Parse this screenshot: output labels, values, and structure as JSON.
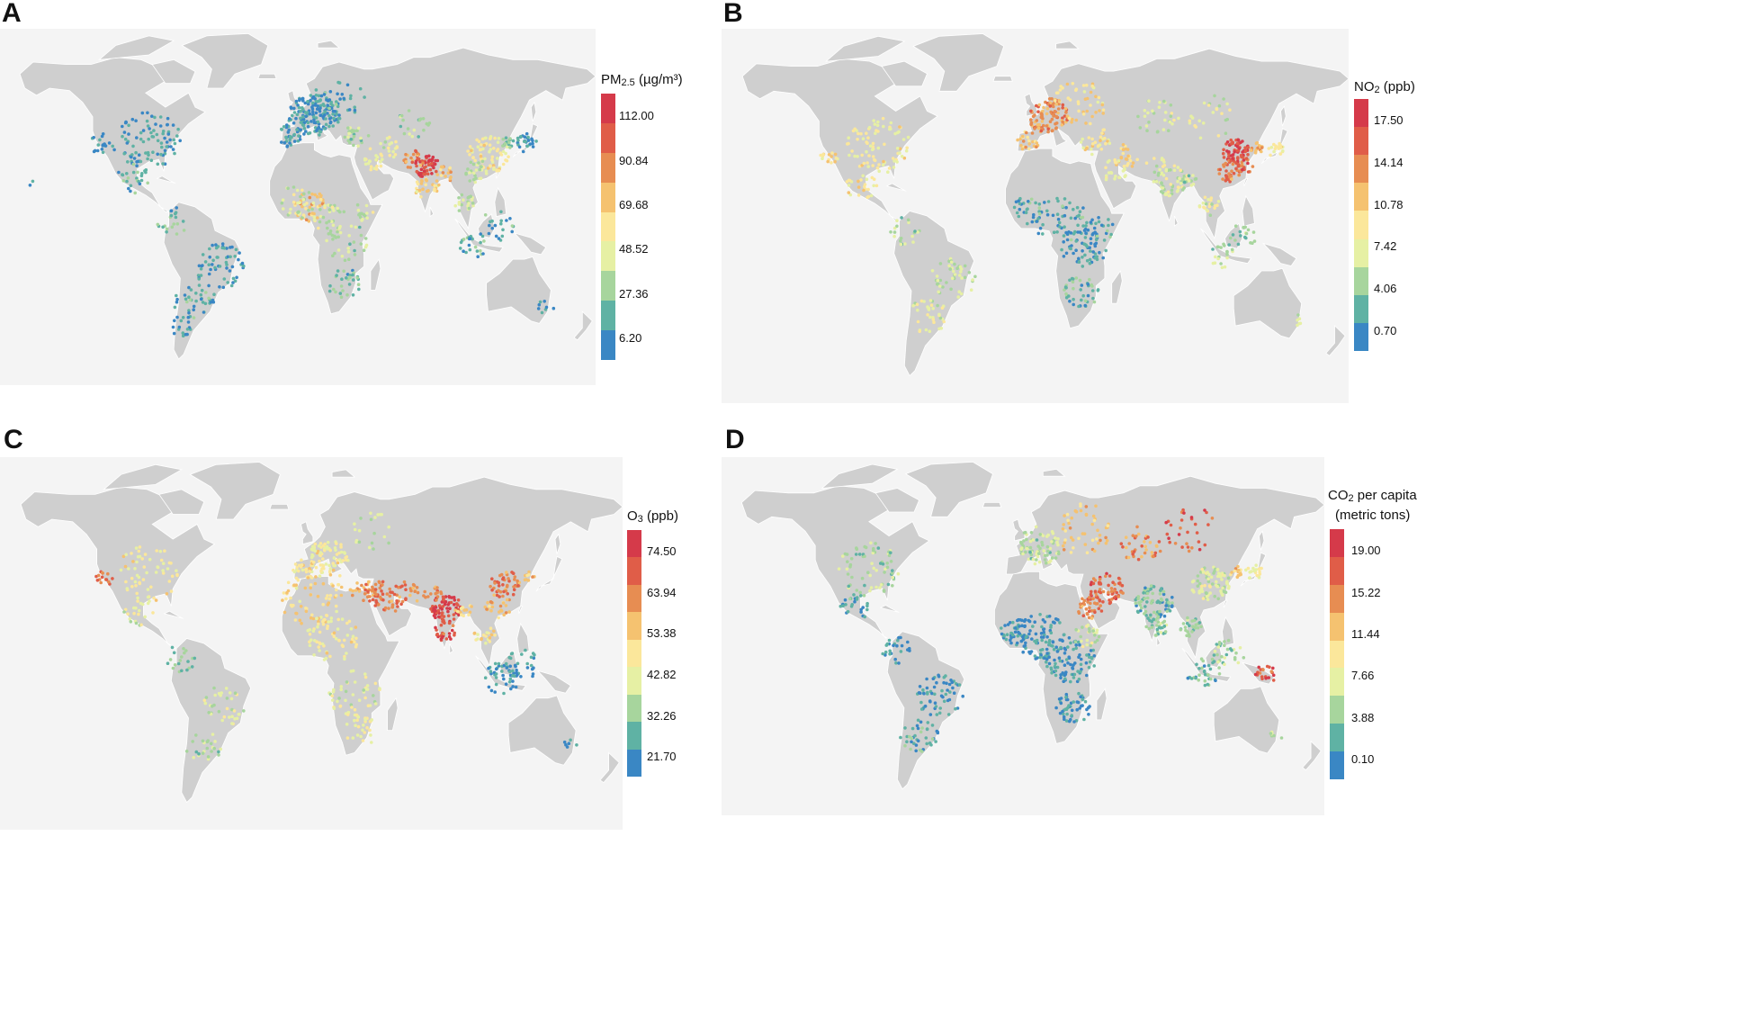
{
  "colors": {
    "land": "#cfcfcf",
    "background": "#f4f4f4",
    "border": "#ffffff",
    "scale": [
      "#3a87c4",
      "#5fb2a4",
      "#a7d59d",
      "#e6f0a4",
      "#fbe79b",
      "#f5c270",
      "#e78d52",
      "#e05d48",
      "#d53a4a"
    ]
  },
  "panels": [
    {
      "letter": "A",
      "legend": {
        "title_main": "PM",
        "title_sub": "2.5",
        "title_rest": " (µg/m³)",
        "title_line2": "",
        "ticks": [
          "112.00",
          "90.84",
          "69.68",
          "48.52",
          "27.36",
          "6.20"
        ]
      },
      "chart_data": {
        "type": "scatter-map",
        "variable": "PM2.5",
        "unit": "µg/m³",
        "scale_min": 6.2,
        "scale_max": 112.0
      }
    },
    {
      "letter": "B",
      "legend": {
        "title_main": "NO",
        "title_sub": "2",
        "title_rest": " (ppb)",
        "title_line2": "",
        "ticks": [
          "17.50",
          "14.14",
          "10.78",
          "7.42",
          "4.06",
          "0.70"
        ]
      },
      "chart_data": {
        "type": "scatter-map",
        "variable": "NO2",
        "unit": "ppb",
        "scale_min": 0.7,
        "scale_max": 17.5
      }
    },
    {
      "letter": "C",
      "legend": {
        "title_main": "O",
        "title_sub": "3",
        "title_rest": " (ppb)",
        "title_line2": "",
        "ticks": [
          "74.50",
          "63.94",
          "53.38",
          "42.82",
          "32.26",
          "21.70"
        ]
      },
      "chart_data": {
        "type": "scatter-map",
        "variable": "O3",
        "unit": "ppb",
        "scale_min": 21.7,
        "scale_max": 74.5
      }
    },
    {
      "letter": "D",
      "legend": {
        "title_main": "CO",
        "title_sub": "2",
        "title_rest": " per capita",
        "title_line2": "(metric tons)",
        "ticks": [
          "19.00",
          "15.22",
          "11.44",
          "7.66",
          "3.88",
          "0.10"
        ]
      },
      "chart_data": {
        "type": "scatter-map",
        "variable": "CO2 per capita",
        "unit": "metric tons",
        "scale_min": 0.1,
        "scale_max": 19.0
      }
    }
  ]
}
